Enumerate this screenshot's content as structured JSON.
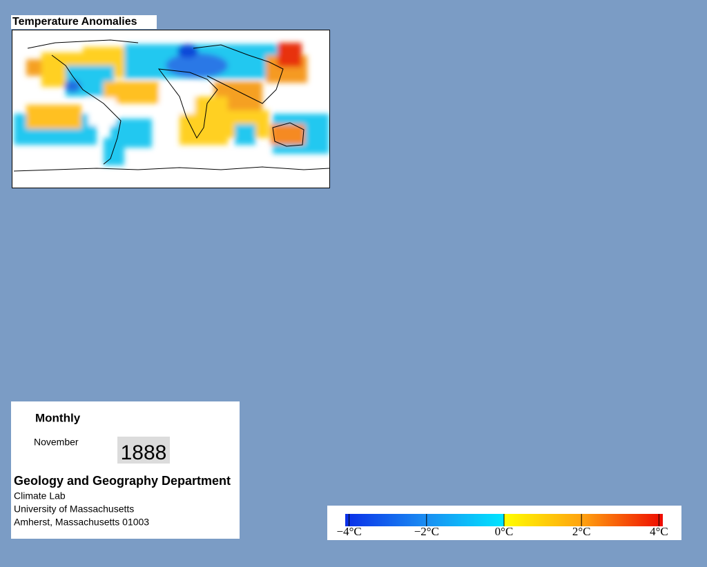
{
  "header": {
    "title": "Temperature Anomalies"
  },
  "info": {
    "period": "Monthly",
    "month": "November",
    "year": "1888",
    "department": "Geology and Geography Department",
    "lab": "Climate Lab",
    "university": "University of Massachusetts",
    "address": "Amherst, Massachusetts 01003"
  },
  "colorbar": {
    "range": [
      -4.1,
      4.1
    ],
    "ticks": [
      {
        "value": -4,
        "label": "−4°C"
      },
      {
        "value": -2,
        "label": "−2°C"
      },
      {
        "value": 0,
        "label": "0°C"
      },
      {
        "value": 2,
        "label": "2°C"
      },
      {
        "value": 4,
        "label": "4°C"
      }
    ]
  }
}
